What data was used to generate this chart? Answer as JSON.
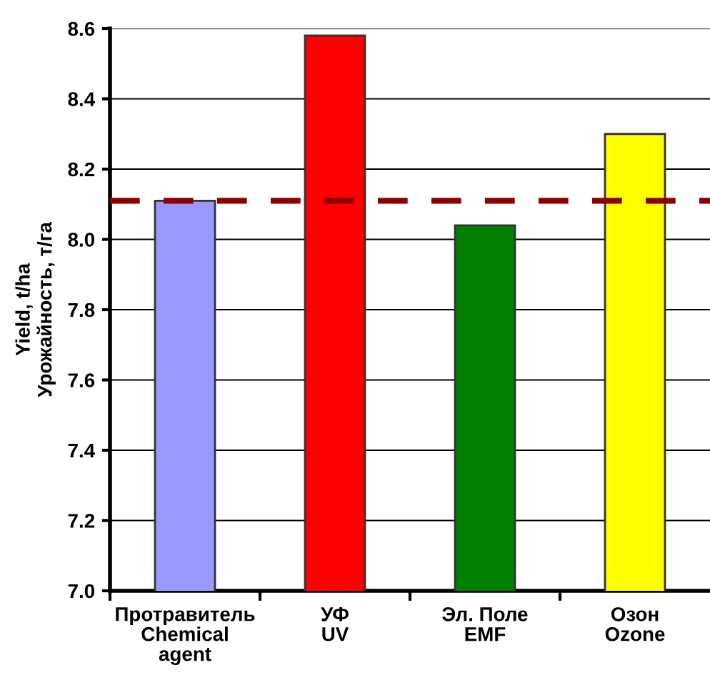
{
  "chart_data": {
    "type": "bar",
    "ylabel": "Yield, t/ha\nУрожайность, т/га",
    "categories": [
      "Протравитель\nChemical\nagent",
      "УФ\nUV",
      "Эл. Поле\nEMF",
      "Озон\nOzone"
    ],
    "values": [
      8.11,
      8.58,
      8.04,
      8.3
    ],
    "colors": [
      "#9999ff",
      "#ff0000",
      "#008000",
      "#ffff00"
    ],
    "ylim": [
      7.0,
      8.6
    ],
    "yticks": [
      {
        "value": 7.0,
        "label": "7.0"
      },
      {
        "value": 7.2,
        "label": "7.2"
      },
      {
        "value": 7.4,
        "label": "7.4"
      },
      {
        "value": 7.6,
        "label": "7.6"
      },
      {
        "value": 7.8,
        "label": "7.8"
      },
      {
        "value": 8.0,
        "label": "8.0"
      },
      {
        "value": 8.2,
        "label": "8.2"
      },
      {
        "value": 8.4,
        "label": "8.4"
      },
      {
        "value": 8.6,
        "label": "8.6"
      }
    ],
    "grid": "y",
    "ref_lines": [
      {
        "axis": "y",
        "value": 8.11,
        "label": null,
        "color": "#8b0000",
        "line_style": "dashed"
      }
    ]
  }
}
